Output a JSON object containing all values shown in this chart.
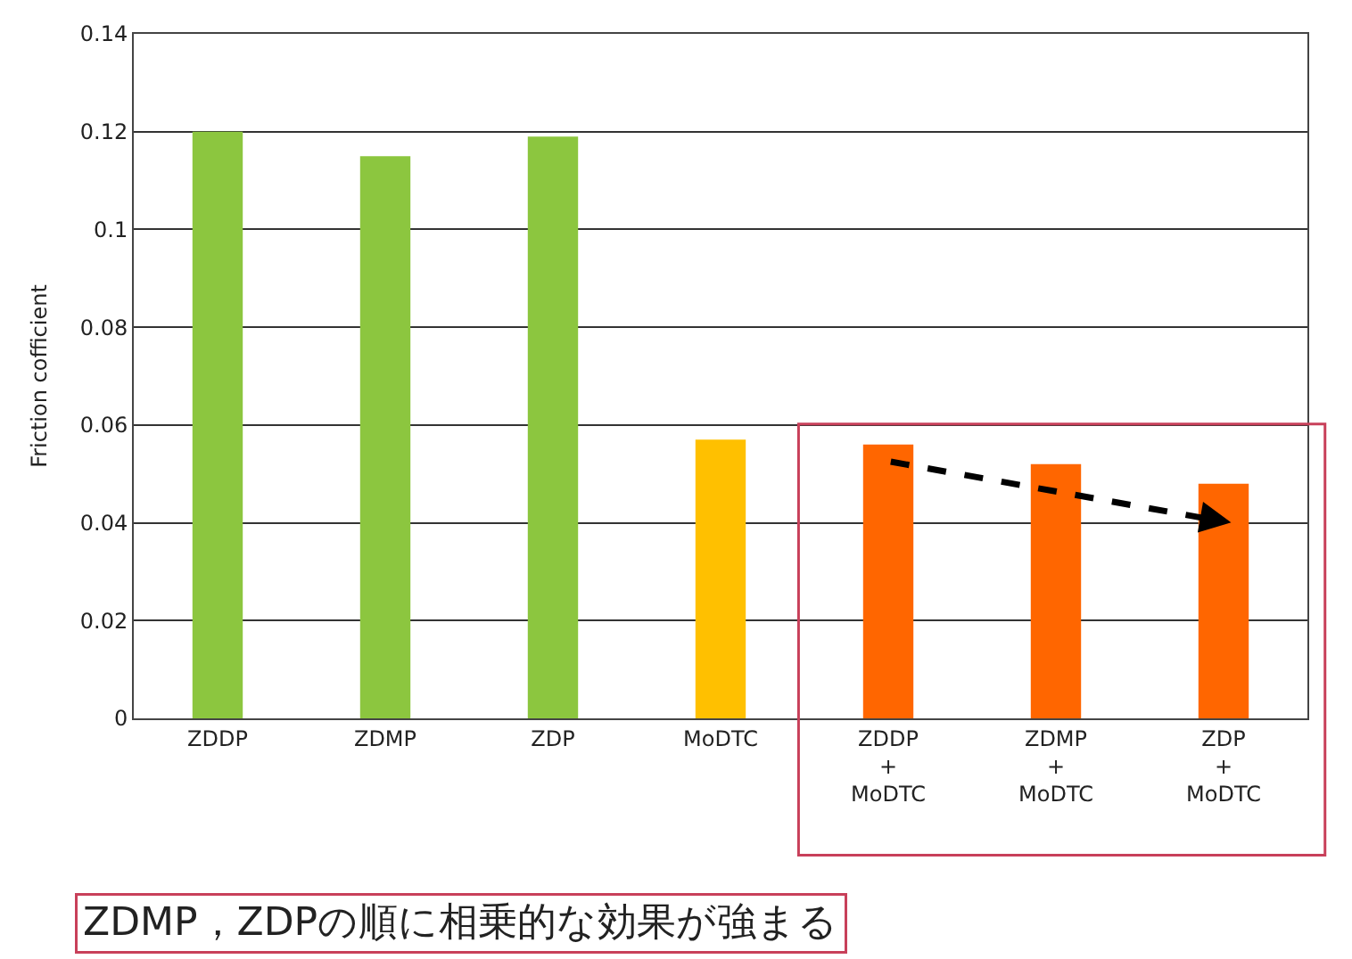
{
  "chart_data": {
    "type": "bar",
    "ylabel": "Friction cofficient",
    "categories": [
      "ZDDP",
      "ZDMP",
      "ZDP",
      "MoDTC",
      "ZDDP\n+\nMoDTC",
      "ZDMP\n+\nMoDTC",
      "ZDP\n+\nMoDTC"
    ],
    "series": [
      {
        "values": [
          0.12,
          0.115,
          0.119,
          0.057,
          0.056,
          0.052,
          0.048
        ],
        "colors": [
          "#8cc63f",
          "#8cc63f",
          "#8cc63f",
          "#ffc000",
          "#ff6600",
          "#ff6600",
          "#ff6600"
        ]
      }
    ],
    "ylim": [
      0,
      0.14
    ],
    "yticks": [
      0,
      0.02,
      0.04,
      0.06,
      0.08,
      0.1,
      0.12,
      0.14
    ],
    "grid": "y",
    "annotations": [
      "ZDMP，ZDPの順に相乗的な効果が強まる"
    ]
  }
}
